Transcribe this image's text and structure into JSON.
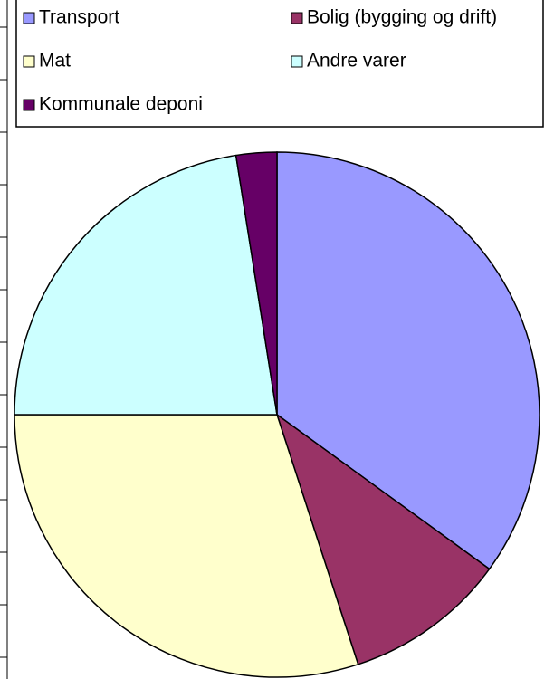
{
  "chart_data": {
    "type": "pie",
    "categories": [
      "Transport",
      "Bolig (bygging og drift)",
      "Mat",
      "Andre varer",
      "Kommunale deponi"
    ],
    "values": [
      35,
      10,
      30,
      22.5,
      2.5
    ],
    "colors": [
      "#9999ff",
      "#993366",
      "#ffffcc",
      "#ccffff",
      "#660066"
    ]
  }
}
